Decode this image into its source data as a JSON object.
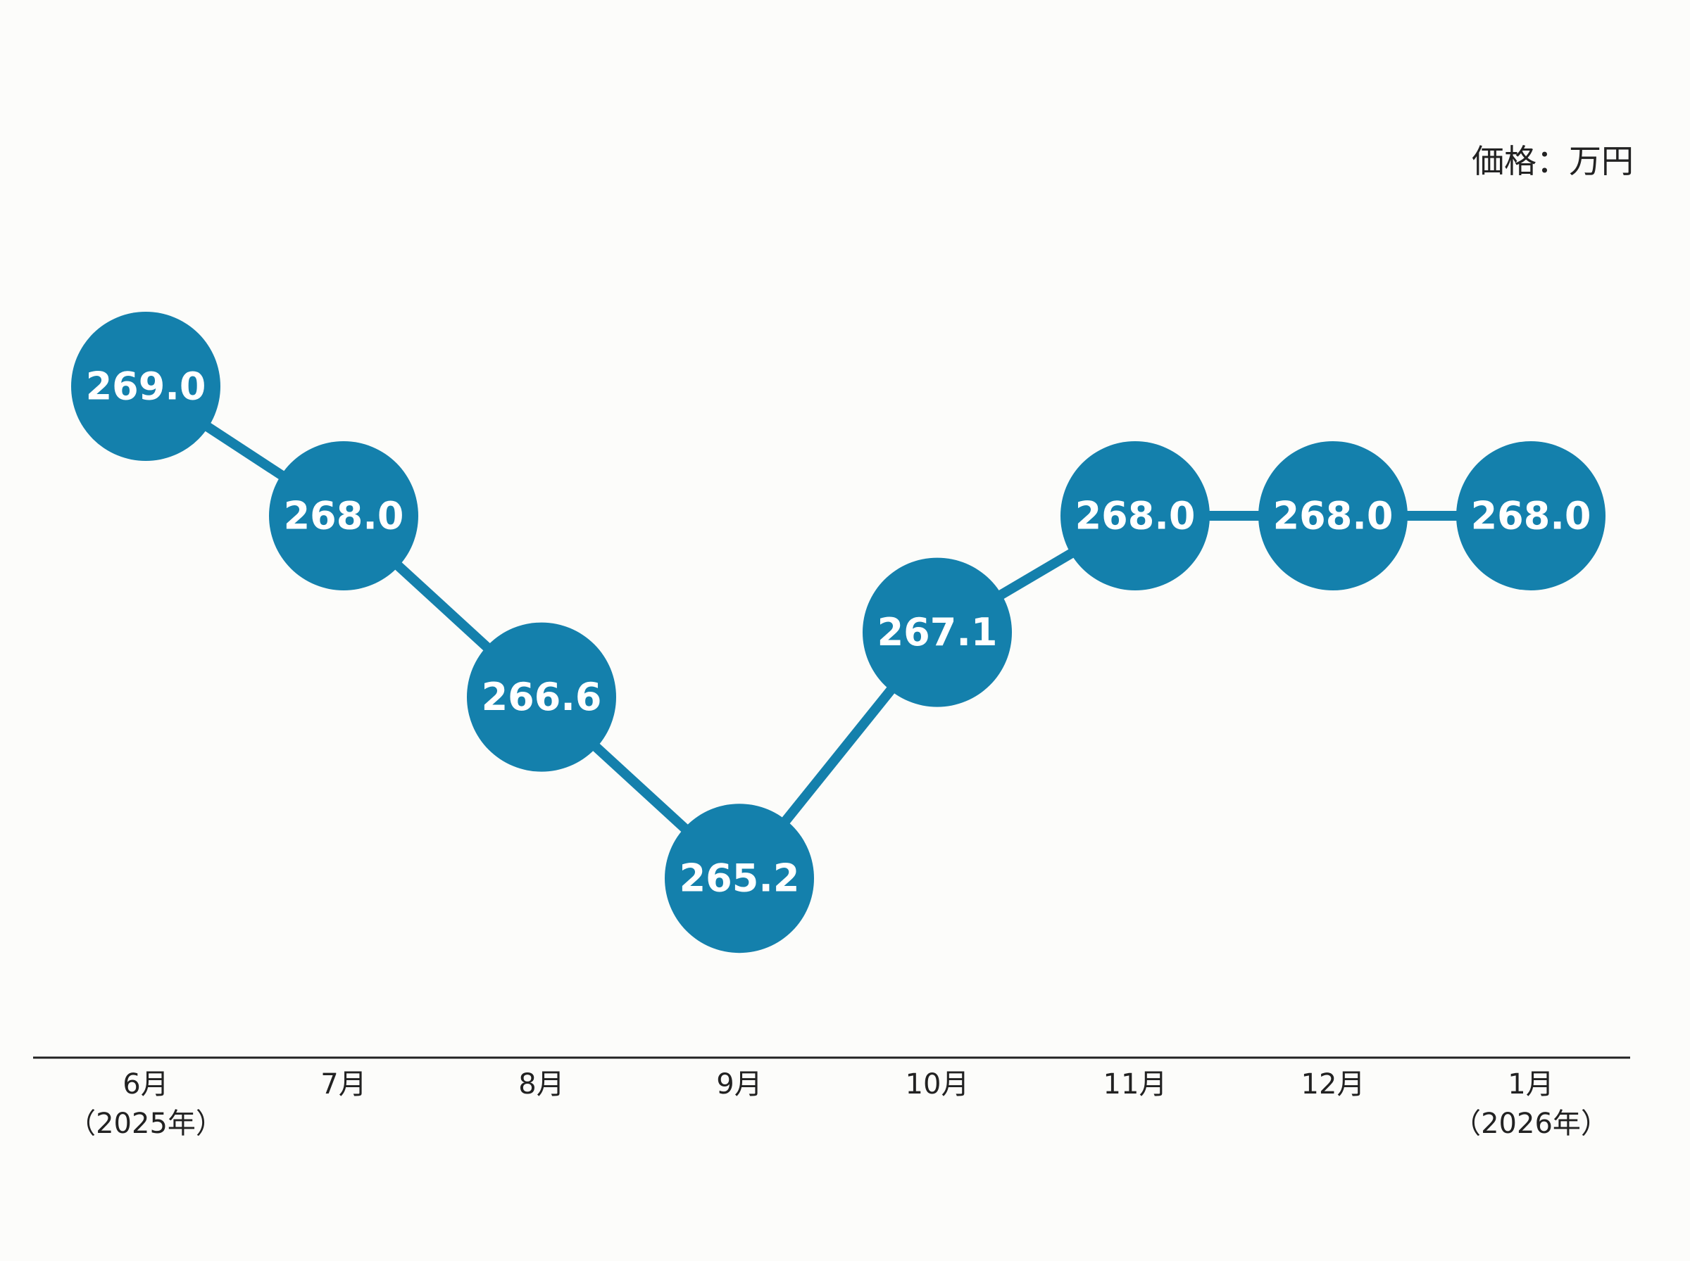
{
  "chart_data": {
    "type": "line",
    "unit_label": "価格：万円",
    "categories": [
      [
        "6月",
        "（2025年）"
      ],
      [
        "7月"
      ],
      [
        "8月"
      ],
      [
        "9月"
      ],
      [
        "10月"
      ],
      [
        "11月"
      ],
      [
        "12月"
      ],
      [
        "1月",
        "（2026年）"
      ]
    ],
    "series": [
      {
        "values": [
          269.0,
          268.0,
          266.6,
          265.2,
          267.1,
          268.0,
          268.0,
          268.0
        ],
        "value_labels": [
          "269.0",
          "268.0",
          "266.6",
          "265.2",
          "267.1",
          "268.0",
          "268.0",
          "268.0"
        ]
      }
    ],
    "ylim": [
      264.0,
      270.0
    ],
    "legend": "none",
    "grid": false,
    "colors": {
      "marker": "#1480ac",
      "line": "#1480ac",
      "value_text": "#ffffff",
      "axis": "#222222",
      "text": "#222222"
    }
  }
}
